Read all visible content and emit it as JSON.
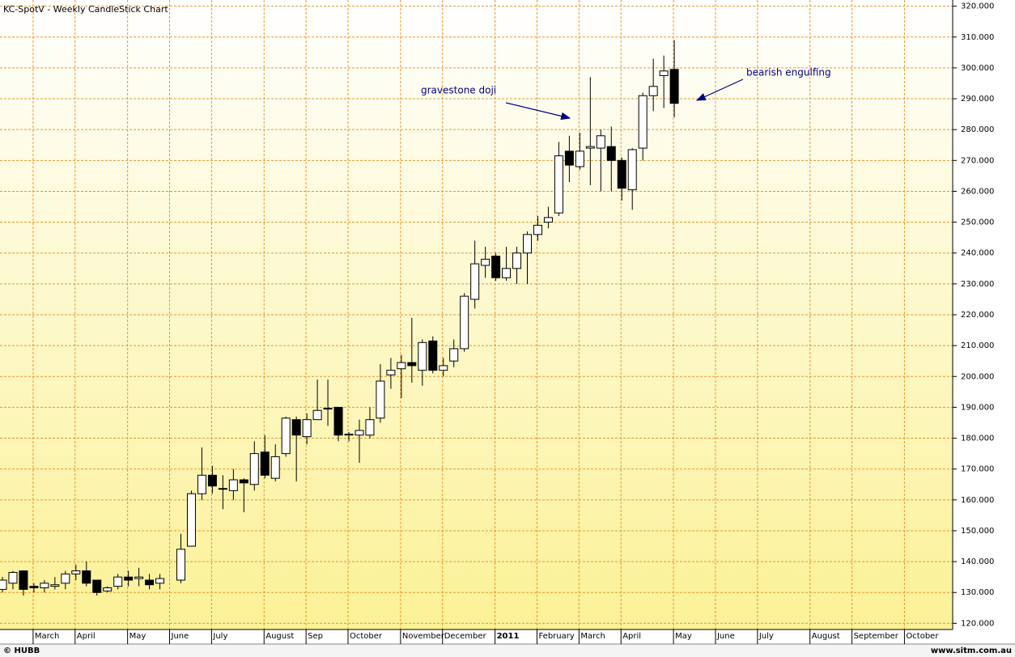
{
  "chart_data": {
    "type": "candlestick",
    "title": "KC-SpotV - Weekly CandleStick Chart",
    "categories": [
      null,
      null,
      null,
      "March",
      null,
      null,
      null,
      "April",
      null,
      null,
      null,
      null,
      "May",
      null,
      null,
      null,
      "June",
      null,
      null,
      null,
      "July",
      null,
      null,
      null,
      null,
      "August",
      null,
      null,
      null,
      "Sep",
      null,
      null,
      null,
      "October",
      null,
      null,
      null,
      null,
      "November",
      null,
      null,
      null,
      "December",
      null,
      null,
      null,
      null,
      "2011",
      null,
      null,
      null,
      "February",
      null,
      null,
      null,
      "March",
      null,
      null,
      null,
      "April",
      null,
      null,
      null,
      null,
      "May",
      null,
      null,
      null,
      "June",
      null,
      null,
      null,
      "July",
      null,
      null,
      null,
      null,
      "August",
      null,
      null,
      null,
      "September",
      null,
      null,
      null,
      null,
      "October",
      null,
      null,
      null,
      null
    ],
    "open": [
      131,
      133,
      137,
      132,
      131.5,
      132,
      133,
      136,
      137,
      134,
      130.5,
      132,
      135,
      134.5,
      134,
      133,
      null,
      134,
      145,
      162,
      168,
      163.5,
      163,
      166.5,
      165,
      175.5,
      167,
      175,
      186,
      180.5,
      186,
      189.5,
      190,
      181,
      181,
      181,
      186.5,
      200.5,
      202.5,
      204.5,
      202,
      211.5,
      202,
      205,
      209,
      225,
      236,
      239,
      232,
      235,
      240,
      246,
      250,
      253,
      273,
      268,
      274,
      274,
      274.5,
      270,
      260.5,
      274,
      291,
      297.5,
      299.5,
      null,
      null,
      null,
      null,
      null,
      null,
      null,
      null,
      null,
      null,
      null,
      null,
      null,
      null,
      null,
      null,
      null,
      null,
      null,
      null,
      null,
      null,
      null,
      null,
      null,
      null
    ],
    "high": [
      135,
      137,
      137,
      133,
      134,
      135,
      137,
      139,
      140,
      134,
      132,
      136,
      137,
      138,
      136,
      136,
      null,
      149,
      163,
      177,
      171,
      168,
      170,
      167,
      179,
      181,
      178,
      187,
      187,
      188,
      199,
      199,
      190,
      182,
      186,
      190,
      204,
      206,
      207,
      219,
      212,
      213,
      206,
      212,
      227,
      244,
      242,
      240,
      242,
      242,
      247,
      252,
      255,
      276,
      278,
      279,
      297,
      280,
      281,
      271,
      274,
      292,
      303,
      304,
      309,
      null,
      null,
      null,
      null,
      null,
      null,
      null,
      null,
      null,
      null,
      null,
      null,
      null,
      null,
      null,
      null,
      null,
      null,
      null,
      null,
      null,
      null,
      null,
      null,
      null,
      null
    ],
    "low": [
      130,
      131,
      129,
      130,
      130,
      131,
      131,
      134,
      132,
      129,
      130,
      131,
      132,
      132,
      131,
      131,
      null,
      133,
      145,
      160,
      162,
      157,
      160,
      156,
      163,
      167,
      166,
      174,
      166,
      178,
      186,
      184,
      179,
      179,
      172,
      180,
      185,
      196,
      193,
      198,
      197,
      201,
      200,
      203,
      208,
      222,
      232,
      231,
      231,
      230,
      230,
      244,
      248,
      252,
      263,
      267,
      262,
      260,
      260,
      257,
      254,
      270,
      286,
      287,
      284,
      null,
      null,
      null,
      null,
      null,
      null,
      null,
      null,
      null,
      null,
      null,
      null,
      null,
      null,
      null,
      null,
      null,
      null,
      null,
      null,
      null,
      null,
      null,
      null,
      null,
      null
    ],
    "close": [
      134,
      136.5,
      131,
      131.5,
      133,
      132.5,
      136,
      137,
      133,
      130,
      131.5,
      135,
      134,
      135,
      132.5,
      134.5,
      null,
      144,
      162,
      168,
      164.5,
      163.7,
      166.5,
      165.5,
      175,
      168,
      174,
      186.5,
      181,
      186,
      189,
      189.7,
      181,
      181.3,
      182.5,
      186,
      198.5,
      202,
      204.5,
      203.5,
      211,
      202,
      203.5,
      209,
      226,
      236.5,
      238,
      232,
      235,
      240,
      246,
      249,
      251.5,
      271.5,
      268.5,
      273,
      274.5,
      278,
      270,
      261,
      273.5,
      291,
      294,
      299,
      288.5,
      null,
      null,
      null,
      null,
      null,
      null,
      null,
      null,
      null,
      null,
      null,
      null,
      null,
      null,
      null,
      null,
      null,
      null,
      null,
      null,
      null,
      null,
      null,
      null,
      null,
      null
    ],
    "up_color": "#ffffff",
    "down_color": "#000000",
    "grid_color": "#e8962e",
    "ylim": [
      118,
      322
    ],
    "yticks": [
      {
        "value": 120,
        "label": "120.000"
      },
      {
        "value": 130,
        "label": "130.000"
      },
      {
        "value": 140,
        "label": "140.000"
      },
      {
        "value": 150,
        "label": "150.000"
      },
      {
        "value": 160,
        "label": "160.000"
      },
      {
        "value": 170,
        "label": "170.000"
      },
      {
        "value": 180,
        "label": "180.000"
      },
      {
        "value": 190,
        "label": "190.000"
      },
      {
        "value": 200,
        "label": "200.000"
      },
      {
        "value": 210,
        "label": "210.000"
      },
      {
        "value": 220,
        "label": "220.000"
      },
      {
        "value": 230,
        "label": "230.000"
      },
      {
        "value": 240,
        "label": "240.000"
      },
      {
        "value": 250,
        "label": "250.000"
      },
      {
        "value": 260,
        "label": "260.000"
      },
      {
        "value": 270,
        "label": "270.000"
      },
      {
        "value": 280,
        "label": "280.000"
      },
      {
        "value": 290,
        "label": "290.000"
      },
      {
        "value": 300,
        "label": "300.000"
      },
      {
        "value": 310,
        "label": "310.000"
      },
      {
        "value": 320,
        "label": "320.000"
      }
    ],
    "grid": true,
    "annotations": [
      "gravestone doji",
      "bearish engulfing"
    ]
  },
  "footer": {
    "left": "© HUBB",
    "right": "www.sitm.com.au"
  }
}
